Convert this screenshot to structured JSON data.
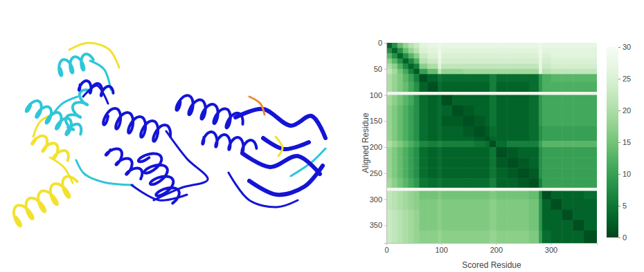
{
  "chart_data": {
    "type": "heatmap",
    "xlabel": "Scored Residue",
    "ylabel": "Aligned Residue",
    "xlim": [
      0,
      384
    ],
    "ylim": [
      0,
      384
    ],
    "xticks": [
      0,
      100,
      200,
      300
    ],
    "yticks": [
      0,
      50,
      100,
      150,
      200,
      250,
      300,
      350
    ],
    "color": "greens",
    "bins": [
      0,
      10,
      20,
      30,
      40,
      50,
      60,
      75,
      94,
      100,
      120,
      140,
      160,
      180,
      188,
      200,
      220,
      240,
      260,
      278,
      284,
      300,
      320,
      340,
      360,
      384
    ],
    "z": [
      [
        3,
        8,
        14,
        18,
        21,
        23,
        26,
        27,
        28,
        27,
        27,
        27,
        27,
        27,
        27,
        27,
        27,
        27,
        27,
        28,
        27,
        27,
        27,
        27,
        27
      ],
      [
        8,
        3,
        8,
        14,
        18,
        21,
        25,
        26,
        28,
        26,
        26,
        26,
        26,
        26,
        26,
        26,
        26,
        26,
        26,
        28,
        26,
        26,
        26,
        26,
        26
      ],
      [
        13,
        8,
        3,
        8,
        13,
        17,
        23,
        25,
        28,
        25,
        25,
        25,
        25,
        25,
        25,
        25,
        25,
        25,
        25,
        28,
        25,
        26,
        26,
        26,
        26
      ],
      [
        17,
        13,
        8,
        3,
        7,
        12,
        21,
        23,
        27,
        24,
        24,
        24,
        24,
        24,
        24,
        24,
        24,
        24,
        24,
        27,
        24,
        25,
        25,
        25,
        25
      ],
      [
        20,
        17,
        12,
        7,
        3,
        6,
        17,
        20,
        26,
        22,
        22,
        22,
        22,
        22,
        22,
        22,
        22,
        22,
        22,
        27,
        23,
        24,
        24,
        24,
        24
      ],
      [
        22,
        19,
        15,
        11,
        6,
        2,
        10,
        14,
        22,
        18,
        18,
        19,
        19,
        19,
        19,
        19,
        19,
        19,
        19,
        26,
        21,
        22,
        22,
        22,
        22
      ],
      [
        20,
        18,
        16,
        13,
        10,
        6,
        1,
        3,
        5,
        4,
        4,
        4,
        4,
        4,
        6,
        4,
        4,
        4,
        4,
        9,
        12,
        13,
        13,
        13,
        13
      ],
      [
        20,
        18,
        16,
        14,
        11,
        8,
        3,
        1,
        4,
        3,
        3,
        3,
        3,
        3,
        6,
        3,
        3,
        3,
        4,
        9,
        12,
        12,
        12,
        12,
        12
      ],
      [
        28,
        28,
        28,
        28,
        28,
        28,
        28,
        28,
        27,
        28,
        28,
        28,
        28,
        28,
        28,
        28,
        28,
        28,
        28,
        29,
        28,
        28,
        28,
        28,
        28
      ],
      [
        19,
        17,
        15,
        13,
        11,
        8,
        4,
        3,
        4,
        1,
        3,
        3,
        3,
        3,
        5,
        3,
        3,
        3,
        4,
        9,
        11,
        11,
        11,
        11,
        11
      ],
      [
        18,
        16,
        14,
        12,
        10,
        8,
        4,
        3,
        4,
        3,
        1,
        2,
        3,
        3,
        5,
        3,
        3,
        3,
        4,
        9,
        11,
        11,
        11,
        11,
        11
      ],
      [
        18,
        16,
        14,
        12,
        10,
        8,
        4,
        3,
        4,
        2,
        2,
        1,
        2,
        3,
        5,
        3,
        3,
        3,
        4,
        9,
        11,
        11,
        11,
        11,
        11
      ],
      [
        18,
        16,
        14,
        12,
        10,
        8,
        4,
        3,
        4,
        3,
        3,
        2,
        1,
        2,
        4,
        3,
        3,
        3,
        4,
        8,
        10,
        10,
        10,
        10,
        10
      ],
      [
        18,
        16,
        14,
        12,
        10,
        8,
        4,
        3,
        4,
        3,
        3,
        3,
        2,
        1,
        3,
        3,
        3,
        3,
        4,
        8,
        10,
        10,
        10,
        10,
        10
      ],
      [
        20,
        18,
        16,
        14,
        12,
        10,
        7,
        6,
        7,
        6,
        6,
        6,
        5,
        4,
        1,
        4,
        6,
        6,
        6,
        10,
        13,
        13,
        13,
        13,
        13
      ],
      [
        18,
        16,
        14,
        12,
        10,
        8,
        4,
        3,
        4,
        3,
        3,
        3,
        3,
        3,
        5,
        1,
        2,
        3,
        3,
        8,
        10,
        10,
        10,
        10,
        10
      ],
      [
        18,
        16,
        14,
        12,
        10,
        8,
        4,
        3,
        4,
        3,
        3,
        3,
        3,
        3,
        5,
        2,
        1,
        2,
        3,
        8,
        10,
        10,
        10,
        10,
        10
      ],
      [
        18,
        16,
        14,
        12,
        10,
        8,
        4,
        3,
        4,
        3,
        3,
        3,
        3,
        3,
        5,
        3,
        2,
        1,
        2,
        8,
        10,
        10,
        10,
        10,
        10
      ],
      [
        19,
        17,
        15,
        13,
        11,
        9,
        5,
        4,
        5,
        4,
        4,
        4,
        4,
        4,
        6,
        3,
        3,
        2,
        1,
        6,
        10,
        10,
        10,
        10,
        10
      ],
      [
        29,
        29,
        29,
        29,
        29,
        29,
        29,
        29,
        29,
        29,
        29,
        29,
        29,
        29,
        29,
        29,
        29,
        29,
        29,
        28,
        29,
        29,
        29,
        29,
        29
      ],
      [
        22,
        21,
        20,
        19,
        18,
        17,
        15,
        15,
        16,
        15,
        15,
        15,
        15,
        15,
        16,
        15,
        15,
        15,
        14,
        8,
        1,
        3,
        3,
        3,
        4
      ],
      [
        22,
        21,
        20,
        19,
        18,
        17,
        16,
        16,
        17,
        16,
        16,
        16,
        16,
        16,
        17,
        16,
        16,
        16,
        15,
        9,
        3,
        1,
        3,
        3,
        3
      ],
      [
        23,
        22,
        21,
        20,
        19,
        18,
        16,
        16,
        17,
        16,
        16,
        16,
        16,
        16,
        17,
        16,
        16,
        16,
        15,
        9,
        3,
        3,
        1,
        3,
        3
      ],
      [
        23,
        22,
        21,
        20,
        19,
        18,
        16,
        16,
        17,
        16,
        16,
        16,
        16,
        16,
        17,
        16,
        16,
        16,
        15,
        9,
        3,
        3,
        3,
        1,
        3
      ],
      [
        23,
        22,
        21,
        20,
        19,
        18,
        17,
        17,
        18,
        17,
        17,
        17,
        17,
        17,
        18,
        17,
        17,
        17,
        16,
        10,
        4,
        3,
        3,
        3,
        1
      ]
    ],
    "colorbar": {
      "range": [
        0,
        30
      ],
      "ticks": [
        0,
        5,
        10,
        15,
        20,
        25,
        30
      ]
    }
  }
}
